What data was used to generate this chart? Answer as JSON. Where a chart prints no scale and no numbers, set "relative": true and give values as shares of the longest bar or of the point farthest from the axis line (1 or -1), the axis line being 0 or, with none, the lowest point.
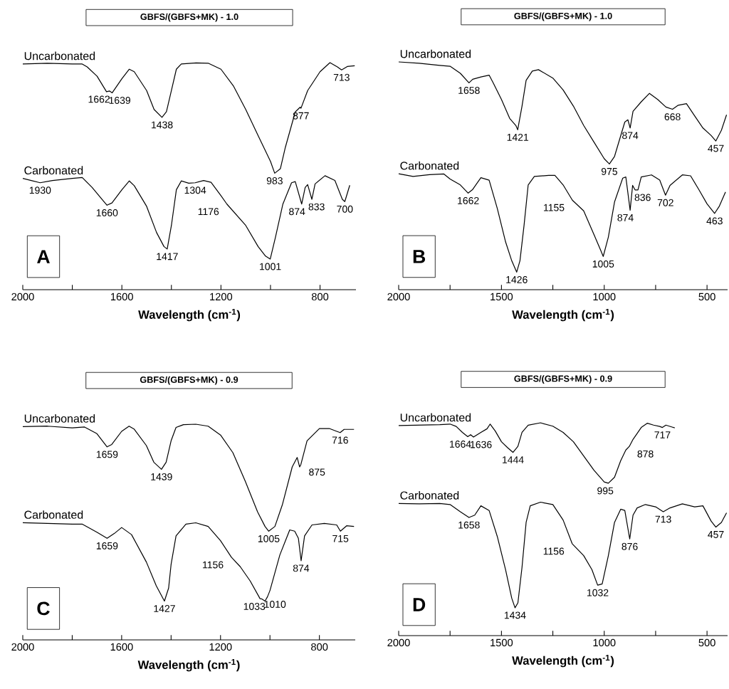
{
  "chart_data": [
    {
      "type": "line",
      "title": "GBFS/(GBFS+MK) - 1.0",
      "xlabel": "Wavelength (cm$^{-1}$)",
      "relative": true,
      "xlim": [
        2000,
        655
      ],
      "xticks": [
        2000,
        {
          "value": 1800,
          "label": null
        },
        1600,
        {
          "value": 1400,
          "label": null
        },
        1200,
        {
          "value": 1000,
          "label": null
        },
        800
      ],
      "series": [
        {
          "name": "Uncarbonated",
          "color": "#000000",
          "x": [
            2000,
            1900,
            1800,
            1760,
            1740,
            1700,
            1662,
            1650,
            1639,
            1600,
            1570,
            1550,
            1500,
            1470,
            1438,
            1420,
            1400,
            1380,
            1360,
            1300,
            1250,
            1200,
            1150,
            1100,
            1050,
            1000,
            983,
            960,
            940,
            900,
            880,
            877,
            850,
            800,
            760,
            730,
            713,
            690,
            660
          ],
          "values": [
            0.994,
            0.997,
            0.994,
            0.994,
            0.981,
            0.94,
            0.872,
            0.875,
            0.867,
            0.929,
            0.971,
            0.96,
            0.877,
            0.794,
            0.759,
            0.784,
            0.877,
            0.971,
            0.994,
            0.999,
            0.997,
            0.971,
            0.898,
            0.794,
            0.679,
            0.565,
            0.513,
            0.533,
            0.627,
            0.783,
            0.804,
            0.799,
            0.877,
            0.96,
            1.0,
            0.981,
            0.968,
            0.983,
            0.986
          ]
        },
        {
          "name": "Carbonated",
          "color": "#000000",
          "x": [
            2000,
            1930,
            1880,
            1800,
            1760,
            1720,
            1680,
            1660,
            1640,
            1600,
            1570,
            1550,
            1500,
            1460,
            1430,
            1417,
            1400,
            1380,
            1360,
            1330,
            1304,
            1270,
            1240,
            1200,
            1176,
            1100,
            1050,
            1020,
            1001,
            980,
            950,
            915,
            900,
            874,
            860,
            850,
            833,
            820,
            780,
            740,
            710,
            700,
            680
          ],
          "values": [
            0.49,
            0.471,
            0.481,
            0.49,
            0.494,
            0.45,
            0.398,
            0.372,
            0.382,
            0.44,
            0.479,
            0.458,
            0.367,
            0.252,
            0.19,
            0.179,
            0.283,
            0.44,
            0.479,
            0.469,
            0.471,
            0.481,
            0.473,
            0.414,
            0.377,
            0.283,
            0.19,
            0.148,
            0.135,
            0.231,
            0.377,
            0.471,
            0.476,
            0.377,
            0.45,
            0.463,
            0.398,
            0.466,
            0.502,
            0.481,
            0.398,
            0.388,
            0.46
          ]
        }
      ],
      "annotations": [
        "A",
        {
          "text": "1662",
          "x": 1662,
          "y": 0.872
        },
        {
          "text": "1639",
          "x": 1639,
          "y": 0.867
        },
        {
          "text": "1438",
          "x": 1438,
          "y": 0.759
        },
        {
          "text": "983",
          "x": 983,
          "y": 0.513
        },
        {
          "text": "877",
          "x": 877,
          "y": 0.799
        },
        {
          "text": "713",
          "x": 713,
          "y": 0.968
        },
        {
          "text": "1930",
          "x": 1930,
          "y": 0.471
        },
        {
          "text": "1660",
          "x": 1660,
          "y": 0.372
        },
        {
          "text": "1417",
          "x": 1417,
          "y": 0.179
        },
        {
          "text": "1304",
          "x": 1304,
          "y": 0.471
        },
        {
          "text": "1176",
          "x": 1176,
          "y": 0.377
        },
        {
          "text": "1001",
          "x": 1001,
          "y": 0.135
        },
        {
          "text": "874",
          "x": 874,
          "y": 0.377
        },
        {
          "text": "833",
          "x": 833,
          "y": 0.398
        },
        {
          "text": "700",
          "x": 700,
          "y": 0.388
        }
      ]
    },
    {
      "type": "line",
      "title": "GBFS/(GBFS+MK) - 1.0",
      "xlabel": "Wavelength (cm$^{-1}$)",
      "relative": true,
      "xlim": [
        2000,
        400
      ],
      "xticks": [
        2000,
        {
          "value": 1750,
          "label": null
        },
        1500,
        {
          "value": 1250,
          "label": null
        },
        1000,
        {
          "value": 750,
          "label": null
        },
        500
      ],
      "series": [
        {
          "name": "Uncarbonated",
          "color": "#000000",
          "x": [
            2000,
            1900,
            1800,
            1750,
            1700,
            1658,
            1640,
            1600,
            1560,
            1540,
            1500,
            1460,
            1430,
            1421,
            1400,
            1380,
            1350,
            1320,
            1250,
            1200,
            1150,
            1100,
            1050,
            1000,
            975,
            950,
            900,
            885,
            874,
            860,
            820,
            780,
            740,
            700,
            668,
            640,
            600,
            560,
            520,
            480,
            457,
            430,
            405
          ],
          "values": [
            1.0,
            0.994,
            0.985,
            0.981,
            0.95,
            0.908,
            0.924,
            0.934,
            0.942,
            0.908,
            0.835,
            0.752,
            0.721,
            0.702,
            0.806,
            0.919,
            0.96,
            0.966,
            0.929,
            0.877,
            0.806,
            0.721,
            0.648,
            0.575,
            0.552,
            0.585,
            0.736,
            0.746,
            0.71,
            0.783,
            0.825,
            0.862,
            0.835,
            0.802,
            0.792,
            0.81,
            0.817,
            0.763,
            0.71,
            0.677,
            0.653,
            0.7,
            0.768
          ]
        },
        {
          "name": "Carbonated",
          "color": "#000000",
          "x": [
            2000,
            1930,
            1850,
            1780,
            1750,
            1700,
            1662,
            1640,
            1600,
            1560,
            1520,
            1480,
            1450,
            1426,
            1410,
            1390,
            1370,
            1340,
            1270,
            1240,
            1200,
            1155,
            1100,
            1050,
            1020,
            1005,
            980,
            950,
            910,
            895,
            874,
            862,
            850,
            836,
            820,
            770,
            730,
            702,
            680,
            650,
            620,
            580,
            540,
            500,
            463,
            440,
            410
          ],
          "values": [
            0.509,
            0.497,
            0.505,
            0.508,
            0.486,
            0.46,
            0.424,
            0.44,
            0.492,
            0.481,
            0.356,
            0.21,
            0.127,
            0.077,
            0.127,
            0.283,
            0.46,
            0.497,
            0.502,
            0.502,
            0.46,
            0.393,
            0.346,
            0.242,
            0.179,
            0.146,
            0.231,
            0.385,
            0.49,
            0.495,
            0.349,
            0.458,
            0.438,
            0.438,
            0.495,
            0.504,
            0.481,
            0.415,
            0.458,
            0.481,
            0.504,
            0.5,
            0.44,
            0.377,
            0.335,
            0.367,
            0.429
          ]
        }
      ],
      "annotations": [
        "B",
        {
          "text": "1658",
          "x": 1658,
          "y": 0.908
        },
        {
          "text": "1421",
          "x": 1421,
          "y": 0.702
        },
        {
          "text": "975",
          "x": 975,
          "y": 0.552
        },
        {
          "text": "874",
          "x": 874,
          "y": 0.71
        },
        {
          "text": "668",
          "x": 668,
          "y": 0.792
        },
        {
          "text": "457",
          "x": 457,
          "y": 0.653
        },
        {
          "text": "1662",
          "x": 1662,
          "y": 0.424
        },
        {
          "text": "1426",
          "x": 1426,
          "y": 0.077
        },
        {
          "text": "1155",
          "x": 1155,
          "y": 0.393
        },
        {
          "text": "1005",
          "x": 1005,
          "y": 0.146
        },
        {
          "text": "874",
          "x": 874,
          "y": 0.349
        },
        {
          "text": "836",
          "x": 836,
          "y": 0.438
        },
        {
          "text": "702",
          "x": 702,
          "y": 0.415
        },
        {
          "text": "463",
          "x": 463,
          "y": 0.335
        }
      ]
    },
    {
      "type": "line",
      "title": "GBFS/(GBFS+MK) - 0.9",
      "xlabel": "Wavelength (cm$^{-1}$)",
      "relative": true,
      "xlim": [
        2000,
        655
      ],
      "xticks": [
        2000,
        {
          "value": 1800,
          "label": null
        },
        1600,
        {
          "value": 1400,
          "label": null
        },
        1200,
        {
          "value": 1000,
          "label": null
        },
        800
      ],
      "series": [
        {
          "name": "Uncarbonated",
          "color": "#000000",
          "x": [
            2000,
            1900,
            1800,
            1750,
            1700,
            1659,
            1640,
            1600,
            1570,
            1550,
            1500,
            1470,
            1439,
            1420,
            1400,
            1380,
            1350,
            1300,
            1250,
            1200,
            1150,
            1100,
            1050,
            1020,
            1005,
            980,
            950,
            910,
            890,
            880,
            875,
            850,
            800,
            760,
            730,
            716,
            700,
            660
          ],
          "values": [
            0.989,
            0.991,
            0.983,
            0.987,
            0.956,
            0.895,
            0.906,
            0.967,
            0.991,
            0.978,
            0.901,
            0.824,
            0.791,
            0.824,
            0.923,
            0.985,
            0.998,
            1.0,
            0.991,
            0.95,
            0.868,
            0.736,
            0.593,
            0.526,
            0.504,
            0.526,
            0.626,
            0.802,
            0.846,
            0.802,
            0.813,
            0.923,
            0.98,
            0.98,
            0.967,
            0.961,
            0.976,
            0.976
          ]
        },
        {
          "name": "Carbonated",
          "color": "#000000",
          "x": [
            2000,
            1900,
            1800,
            1760,
            1700,
            1659,
            1630,
            1600,
            1560,
            1500,
            1460,
            1427,
            1410,
            1400,
            1380,
            1340,
            1300,
            1250,
            1200,
            1156,
            1120,
            1080,
            1040,
            1033,
            1020,
            1010,
            1000,
            960,
            920,
            900,
            885,
            874,
            860,
            830,
            780,
            730,
            715,
            690,
            660
          ],
          "values": [
            0.543,
            0.54,
            0.537,
            0.537,
            0.499,
            0.471,
            0.493,
            0.521,
            0.488,
            0.361,
            0.251,
            0.18,
            0.24,
            0.35,
            0.482,
            0.537,
            0.543,
            0.526,
            0.46,
            0.383,
            0.339,
            0.273,
            0.191,
            0.19,
            0.18,
            0.2,
            0.229,
            0.394,
            0.51,
            0.504,
            0.471,
            0.367,
            0.482,
            0.533,
            0.54,
            0.533,
            0.504,
            0.529,
            0.526
          ]
        }
      ],
      "annotations": [
        "C",
        {
          "text": "1659",
          "x": 1659,
          "y": 0.895
        },
        {
          "text": "1439",
          "x": 1439,
          "y": 0.791
        },
        {
          "text": "1005",
          "x": 1005,
          "y": 0.504
        },
        {
          "text": "875",
          "x": 875,
          "y": 0.813
        },
        {
          "text": "716",
          "x": 716,
          "y": 0.961
        },
        {
          "text": "1659",
          "x": 1659,
          "y": 0.471
        },
        {
          "text": "1427",
          "x": 1427,
          "y": 0.18
        },
        {
          "text": "1156",
          "x": 1156,
          "y": 0.383
        },
        {
          "text": "1033",
          "x": 1033,
          "y": 0.19
        },
        {
          "text": "1010",
          "x": 1010,
          "y": 0.2
        },
        {
          "text": "874",
          "x": 874,
          "y": 0.367
        },
        {
          "text": "715",
          "x": 715,
          "y": 0.504
        }
      ]
    },
    {
      "type": "line",
      "title": "GBFS/(GBFS+MK) - 0.9",
      "xlabel": "Wavelength (cm$^{-1}$)",
      "relative": true,
      "xlim": [
        2000,
        400
      ],
      "xticks": [
        2000,
        {
          "value": 1750,
          "label": null
        },
        1500,
        {
          "value": 1250,
          "label": null
        },
        1000,
        {
          "value": 750,
          "label": null
        },
        500
      ],
      "series": [
        {
          "name": "Uncarbonated",
          "color": "#000000",
          "x": [
            2000,
            1900,
            1800,
            1750,
            1720,
            1690,
            1664,
            1650,
            1636,
            1600,
            1570,
            1555,
            1530,
            1500,
            1470,
            1444,
            1420,
            1400,
            1370,
            1310,
            1250,
            1200,
            1150,
            1100,
            1050,
            1000,
            980,
            950,
            920,
            895,
            878,
            860,
            820,
            790,
            760,
            730,
            717,
            700,
            670,
            657
          ],
          "values": [
            0.987,
            0.989,
            0.991,
            0.994,
            0.983,
            0.955,
            0.935,
            0.944,
            0.933,
            0.955,
            0.972,
            0.994,
            0.961,
            0.911,
            0.883,
            0.861,
            0.889,
            0.955,
            0.989,
            1.0,
            0.984,
            0.955,
            0.911,
            0.844,
            0.777,
            0.722,
            0.716,
            0.744,
            0.822,
            0.872,
            0.889,
            0.922,
            0.978,
            0.998,
            0.989,
            0.983,
            0.978,
            0.989,
            0.98,
            0.976
          ]
        },
        {
          "name": "Carbonated",
          "color": "#000000",
          "x": [
            2000,
            1900,
            1800,
            1750,
            1700,
            1658,
            1630,
            1600,
            1560,
            1520,
            1480,
            1450,
            1434,
            1420,
            1400,
            1380,
            1360,
            1310,
            1250,
            1200,
            1156,
            1100,
            1060,
            1032,
            1010,
            980,
            950,
            920,
            900,
            876,
            860,
            840,
            800,
            750,
            713,
            680,
            620,
            560,
            520,
            480,
            457,
            430,
            405
          ],
          "values": [
            0.621,
            0.619,
            0.621,
            0.616,
            0.582,
            0.555,
            0.566,
            0.61,
            0.588,
            0.465,
            0.31,
            0.176,
            0.131,
            0.154,
            0.321,
            0.532,
            0.61,
            0.627,
            0.616,
            0.543,
            0.432,
            0.376,
            0.31,
            0.237,
            0.243,
            0.376,
            0.532,
            0.594,
            0.588,
            0.454,
            0.566,
            0.6,
            0.616,
            0.605,
            0.582,
            0.6,
            0.619,
            0.605,
            0.61,
            0.538,
            0.51,
            0.532,
            0.577
          ]
        }
      ],
      "annotations": [
        "D",
        {
          "text": "1664",
          "x": 1664,
          "y": 0.935
        },
        {
          "text": "1636",
          "x": 1636,
          "y": 0.933
        },
        {
          "text": "1444",
          "x": 1444,
          "y": 0.861
        },
        {
          "text": "995",
          "x": 995,
          "y": 0.716
        },
        {
          "text": "878",
          "x": 878,
          "y": 0.889
        },
        {
          "text": "717",
          "x": 717,
          "y": 0.978
        },
        {
          "text": "1658",
          "x": 1658,
          "y": 0.555
        },
        {
          "text": "1434",
          "x": 1434,
          "y": 0.131
        },
        {
          "text": "1156",
          "x": 1156,
          "y": 0.432
        },
        {
          "text": "1032",
          "x": 1032,
          "y": 0.237
        },
        {
          "text": "876",
          "x": 876,
          "y": 0.454
        },
        {
          "text": "713",
          "x": 713,
          "y": 0.582
        },
        {
          "text": "457",
          "x": 457,
          "y": 0.51
        }
      ]
    }
  ]
}
